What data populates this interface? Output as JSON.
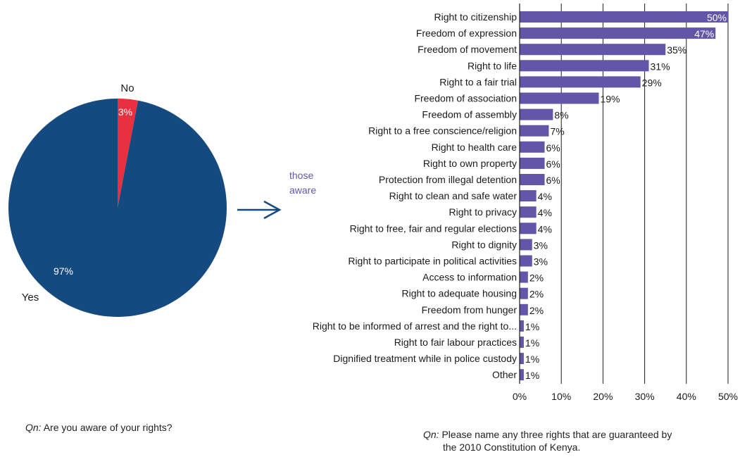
{
  "chart_data": [
    {
      "type": "pie",
      "slices": [
        {
          "label": "No",
          "value": 3,
          "display": "3%",
          "color": "#e8303f"
        },
        {
          "label": "Yes",
          "value": 97,
          "display": "97%",
          "color": "#154a80"
        }
      ],
      "question_prefix": "Qn:",
      "question": "Are you aware of your rights?"
    },
    {
      "type": "bar",
      "orientation": "horizontal",
      "annotation": "those aware",
      "annotation_lines": [
        "those",
        "aware"
      ],
      "categories": [
        "Right to citizenship",
        "Freedom of expression",
        "Freedom of movement",
        "Right to life",
        "Right to a fair trial",
        "Freedom of association",
        "Freedom of assembly",
        "Right to a free conscience/religion",
        "Right to health care",
        "Right to own property",
        "Protection from illegal detention",
        "Right to clean and safe water",
        "Right to privacy",
        "Right to free, fair and regular elections",
        "Right to dignity",
        "Right to participate in political activities",
        "Access to information",
        "Right to adequate housing",
        "Freedom from hunger",
        "Right to be informed of arrest and the right to...",
        "Right to fair labour practices",
        "Dignified treatment while in police custody",
        "Other"
      ],
      "values": [
        50,
        47,
        35,
        31,
        29,
        19,
        8,
        7,
        6,
        6,
        6,
        4,
        4,
        4,
        3,
        3,
        2,
        2,
        2,
        1,
        1,
        1,
        1
      ],
      "value_labels": [
        "50%",
        "47%",
        "35%",
        "31%",
        "29%",
        "19%",
        "8%",
        "7%",
        "6%",
        "6%",
        "6%",
        "4%",
        "4%",
        "4%",
        "3%",
        "3%",
        "2%",
        "2%",
        "2%",
        "1%",
        "1%",
        "1%",
        "1%"
      ],
      "xlim": [
        0,
        50
      ],
      "xticks": [
        0,
        10,
        20,
        30,
        40,
        50
      ],
      "xtick_labels": [
        "0%",
        "10%",
        "20%",
        "30%",
        "40%",
        "50%"
      ],
      "grid": true,
      "bar_color": "#6356a8",
      "question_prefix": "Qn:",
      "question_line1": "Please name any three rights that are guaranteed by",
      "question_line2": "the 2010 Constitution of Kenya."
    }
  ],
  "colors": {
    "arrow": "#154a80",
    "annotation": "#6356a8",
    "grid": "#1a1a1a",
    "text": "#1a1a1a"
  }
}
